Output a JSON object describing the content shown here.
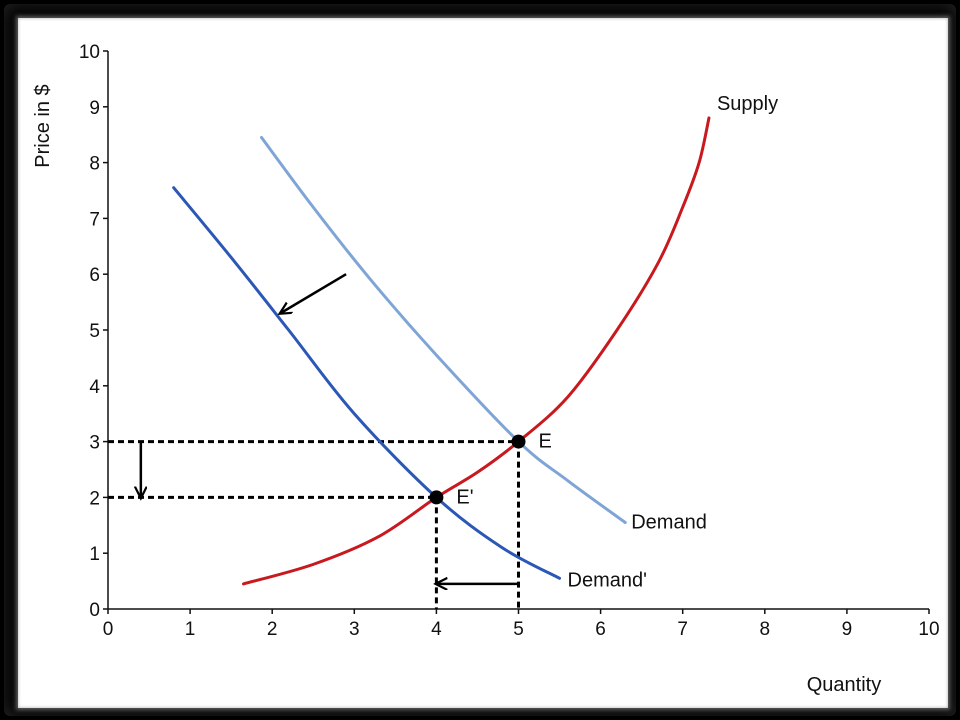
{
  "chart_data": {
    "type": "line",
    "xlabel": "Quantity",
    "ylabel": "Price in $",
    "xlim": [
      0,
      10
    ],
    "ylim": [
      0,
      10
    ],
    "xticks": [
      "0",
      "1",
      "2",
      "3",
      "4",
      "5",
      "6",
      "7",
      "8",
      "9",
      "10"
    ],
    "yticks": [
      "0",
      "1",
      "2",
      "3",
      "4",
      "5",
      "6",
      "7",
      "8",
      "9",
      "10"
    ],
    "grid": false,
    "series": [
      {
        "name": "Supply",
        "color": "#c8191e",
        "points": [
          [
            1.65,
            0.45
          ],
          [
            2.5,
            0.8
          ],
          [
            3.3,
            1.3
          ],
          [
            4,
            2
          ],
          [
            4.5,
            2.45
          ],
          [
            5,
            3
          ],
          [
            5.6,
            3.8
          ],
          [
            6.2,
            5.0
          ],
          [
            6.7,
            6.2
          ],
          [
            7.0,
            7.2
          ],
          [
            7.2,
            8.0
          ],
          [
            7.32,
            8.8
          ]
        ]
      },
      {
        "name": "Demand",
        "color": "#7fa5d6",
        "points": [
          [
            1.87,
            8.45
          ],
          [
            2.5,
            7.2
          ],
          [
            3.2,
            5.9
          ],
          [
            4.0,
            4.55
          ],
          [
            5,
            3
          ],
          [
            5.6,
            2.3
          ],
          [
            6.3,
            1.55
          ]
        ]
      },
      {
        "name": "Demand'",
        "color": "#2b57b6",
        "points": [
          [
            0.8,
            7.55
          ],
          [
            1.5,
            6.3
          ],
          [
            2.2,
            5.0
          ],
          [
            3.0,
            3.5
          ],
          [
            4,
            2
          ],
          [
            4.8,
            1.1
          ],
          [
            5.5,
            0.55
          ]
        ]
      }
    ],
    "points": [
      {
        "label": "E",
        "x": 5,
        "y": 3
      },
      {
        "label": "E'",
        "x": 4,
        "y": 2
      }
    ],
    "guides": [
      {
        "from": [
          0,
          3
        ],
        "to": [
          5,
          3
        ]
      },
      {
        "from": [
          5,
          3
        ],
        "to": [
          5,
          0
        ]
      },
      {
        "from": [
          0,
          2
        ],
        "to": [
          4,
          2
        ]
      },
      {
        "from": [
          4,
          2
        ],
        "to": [
          4,
          0
        ]
      }
    ],
    "arrows": [
      {
        "meaning": "demand shift",
        "from": [
          2.9,
          6.0
        ],
        "to": [
          2.1,
          5.3
        ]
      },
      {
        "meaning": "price fall",
        "from": [
          0.4,
          3
        ],
        "to": [
          0.4,
          2
        ]
      },
      {
        "meaning": "quantity fall",
        "from": [
          5,
          0.45
        ],
        "to": [
          4,
          0.45
        ]
      }
    ]
  }
}
